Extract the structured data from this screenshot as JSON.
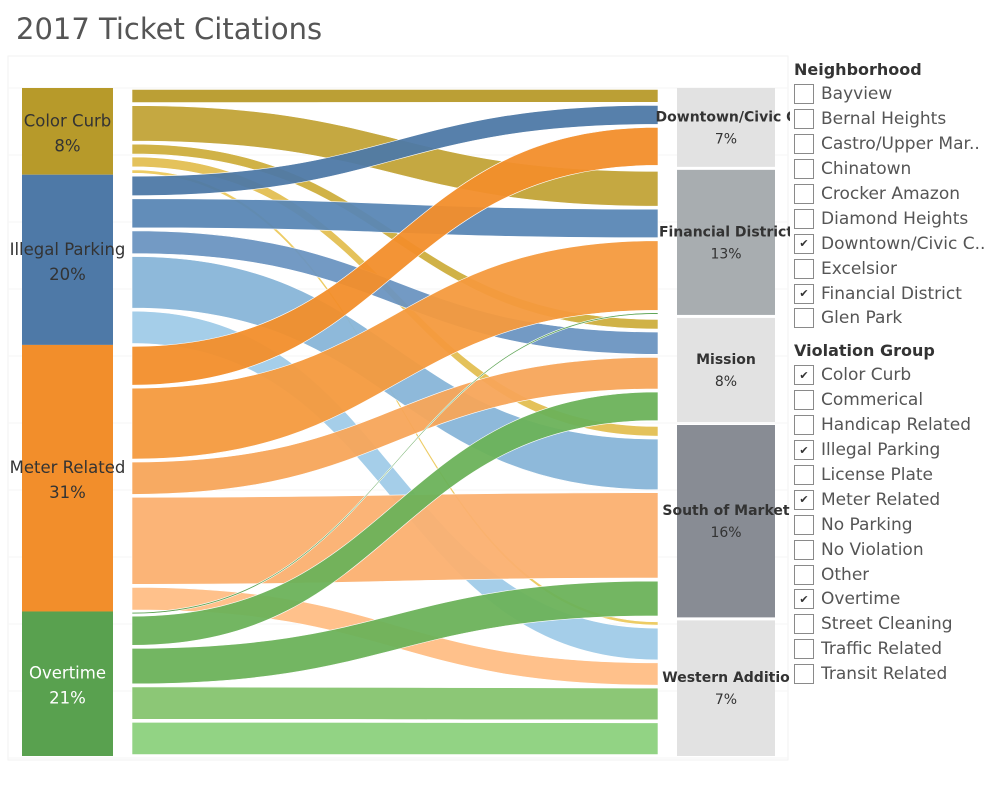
{
  "title": "2017 Ticket Citations",
  "chart_data": {
    "type": "sankey",
    "title": "2017 Ticket Citations",
    "sources": [
      {
        "name": "Color Curb",
        "percent": "8%",
        "color": "#b79a2a"
      },
      {
        "name": "Illegal Parking",
        "percent": "20%",
        "color": "#4e79a7"
      },
      {
        "name": "Meter Related",
        "percent": "31%",
        "color": "#f28e2b"
      },
      {
        "name": "Overtime",
        "percent": "21%",
        "color": "#59a14f"
      }
    ],
    "targets": [
      {
        "name": "Downtown/Civic Center",
        "display": "Downtown/Civic C",
        "percent": "7%",
        "color": "#e2e2e2"
      },
      {
        "name": "Financial District",
        "display": "Financial District",
        "percent": "13%",
        "color": "#a8adb0"
      },
      {
        "name": "Mission",
        "display": "Mission",
        "percent": "8%",
        "color": "#e2e2e2"
      },
      {
        "name": "South of Market",
        "display": "South of Market",
        "percent": "16%",
        "color": "#888c94"
      },
      {
        "name": "Western Addition",
        "display": "Western Additio",
        "percent": "7%",
        "color": "#e2e2e2"
      }
    ],
    "flows": [
      {
        "source": "Color Curb",
        "target": "Downtown/Civic Center",
        "value": 1.0,
        "color": "#b79a2a"
      },
      {
        "source": "Color Curb",
        "target": "Financial District",
        "value": 2.4,
        "color": "#c2a337"
      },
      {
        "source": "Color Curb",
        "target": "Mission",
        "value": 0.8,
        "color": "#cdae3d"
      },
      {
        "source": "Color Curb",
        "target": "South of Market",
        "value": 0.8,
        "color": "#e3bf52"
      },
      {
        "source": "Color Curb",
        "target": "Western Addition",
        "value": 0.4,
        "color": "#ecc95d"
      },
      {
        "source": "Illegal Parking",
        "target": "Downtown/Civic Center",
        "value": 1.4,
        "color": "#4e79a7"
      },
      {
        "source": "Illegal Parking",
        "target": "Financial District",
        "value": 2.0,
        "color": "#5a87b5"
      },
      {
        "source": "Illegal Parking",
        "target": "Mission",
        "value": 1.6,
        "color": "#6c95c1"
      },
      {
        "source": "Illegal Parking",
        "target": "South of Market",
        "value": 3.4,
        "color": "#88b5d8"
      },
      {
        "source": "Illegal Parking",
        "target": "Western Addition",
        "value": 2.2,
        "color": "#a0cbe8"
      },
      {
        "source": "Meter Related",
        "target": "Downtown/Civic Center",
        "value": 2.6,
        "color": "#f28e2b"
      },
      {
        "source": "Meter Related",
        "target": "Financial District",
        "value": 4.6,
        "color": "#f49a3e"
      },
      {
        "source": "Meter Related",
        "target": "Mission",
        "value": 2.2,
        "color": "#f7a55a"
      },
      {
        "source": "Meter Related",
        "target": "South of Market",
        "value": 5.6,
        "color": "#fbb070"
      },
      {
        "source": "Meter Related",
        "target": "Western Addition",
        "value": 1.6,
        "color": "#ffbe85"
      },
      {
        "source": "Overtime",
        "target": "Financial District",
        "value": 0.2,
        "color": "#59a14f"
      },
      {
        "source": "Overtime",
        "target": "Mission",
        "value": 2.0,
        "color": "#6cb25a"
      },
      {
        "source": "Overtime",
        "target": "South of Market",
        "value": 2.4,
        "color": "#6cb25a"
      },
      {
        "source": "Overtime",
        "target": "Western Addition",
        "value": 2.2,
        "color": "#86c46f"
      },
      {
        "source": "Overtime",
        "target": "Western Addition",
        "value": 2.2,
        "color": "#8cd17d"
      }
    ]
  },
  "filters": {
    "neighborhood": {
      "title": "Neighborhood",
      "items": [
        {
          "label": "Bayview",
          "checked": false
        },
        {
          "label": "Bernal Heights",
          "checked": false
        },
        {
          "label": "Castro/Upper Mar..",
          "checked": false
        },
        {
          "label": "Chinatown",
          "checked": false
        },
        {
          "label": "Crocker Amazon",
          "checked": false
        },
        {
          "label": "Diamond Heights",
          "checked": false
        },
        {
          "label": "Downtown/Civic C..",
          "checked": true
        },
        {
          "label": "Excelsior",
          "checked": false
        },
        {
          "label": "Financial District",
          "checked": true
        },
        {
          "label": "Glen Park",
          "checked": false
        }
      ]
    },
    "violation_group": {
      "title": "Violation Group",
      "items": [
        {
          "label": "Color Curb",
          "checked": true
        },
        {
          "label": "Commerical",
          "checked": false
        },
        {
          "label": "Handicap Related",
          "checked": false
        },
        {
          "label": "Illegal Parking",
          "checked": true
        },
        {
          "label": "License Plate",
          "checked": false
        },
        {
          "label": "Meter Related",
          "checked": true
        },
        {
          "label": "No Parking",
          "checked": false
        },
        {
          "label": "No Violation",
          "checked": false
        },
        {
          "label": "Other",
          "checked": false
        },
        {
          "label": "Overtime",
          "checked": true
        },
        {
          "label": "Street Cleaning",
          "checked": false
        },
        {
          "label": "Traffic Related",
          "checked": false
        },
        {
          "label": "Transit Related",
          "checked": false
        }
      ]
    }
  }
}
